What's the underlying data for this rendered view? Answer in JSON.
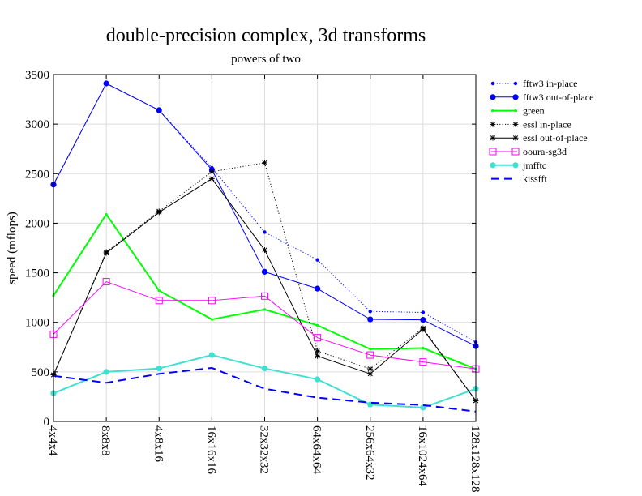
{
  "chart_data": {
    "type": "line",
    "title": "double-precision complex, 3d transforms",
    "subtitle": "powers of two",
    "xlabel": "",
    "ylabel": "speed (mflops)",
    "ylim": [
      0,
      3500
    ],
    "yticks": [
      0,
      500,
      1000,
      1500,
      2000,
      2500,
      3000,
      3500
    ],
    "grid": true,
    "legend_position": "right",
    "categories": [
      "4x4x4",
      "8x8x8",
      "4x8x16",
      "16x16x16",
      "32x32x32",
      "64x64x64",
      "256x64x32",
      "16x1024x64",
      "128x128x128"
    ],
    "series": [
      {
        "name": "fftw3 in-place",
        "color": "#0000ff",
        "style": "dotted",
        "marker": "dot",
        "values": [
          2390,
          3410,
          3140,
          2560,
          1910,
          1630,
          1110,
          1100,
          800
        ]
      },
      {
        "name": "fftw3 out-of-place",
        "color": "#0000ff",
        "style": "solid",
        "marker": "circle",
        "values": [
          2390,
          3410,
          3140,
          2540,
          1510,
          1340,
          1030,
          1025,
          760
        ]
      },
      {
        "name": "green",
        "color": "#00ff00",
        "style": "solid-thick",
        "marker": "small-dot",
        "values": [
          1270,
          2090,
          1320,
          1030,
          1130,
          970,
          730,
          740,
          530
        ]
      },
      {
        "name": "essl in-place",
        "color": "#000000",
        "style": "dotted",
        "marker": "star",
        "values": [
          470,
          1710,
          2120,
          2520,
          2610,
          710,
          530,
          940,
          210
        ]
      },
      {
        "name": "essl out-of-place",
        "color": "#000000",
        "style": "solid",
        "marker": "star",
        "values": [
          470,
          1700,
          2110,
          2450,
          1730,
          660,
          480,
          930,
          210
        ]
      },
      {
        "name": "ooura-sg3d",
        "color": "#ff00ff",
        "style": "solid",
        "marker": "square",
        "values": [
          880,
          1410,
          1220,
          1220,
          1265,
          845,
          670,
          600,
          530
        ]
      },
      {
        "name": "jmfftc",
        "color": "#40e0d0",
        "style": "solid-thick",
        "marker": "circle",
        "values": [
          285,
          500,
          535,
          670,
          535,
          425,
          170,
          140,
          330
        ]
      },
      {
        "name": "kissfft",
        "color": "#0000ff",
        "style": "dashed-thick",
        "marker": "none",
        "values": [
          460,
          390,
          480,
          540,
          330,
          240,
          190,
          165,
          100
        ]
      }
    ]
  }
}
